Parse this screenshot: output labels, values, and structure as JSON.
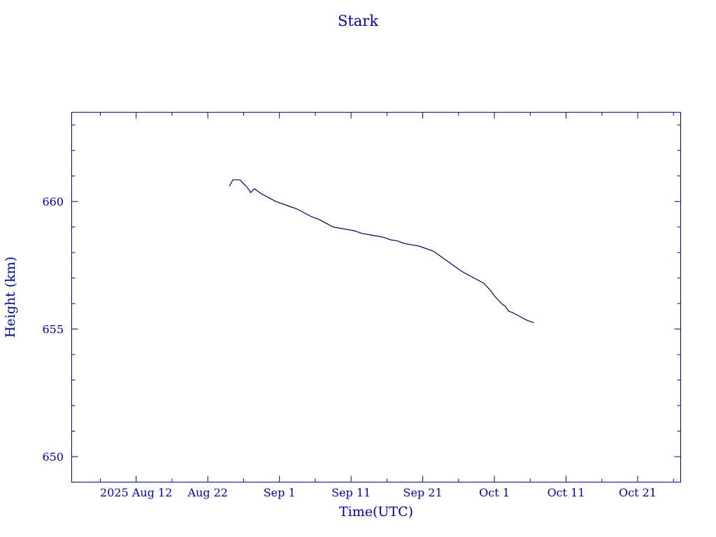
{
  "chart_data": {
    "type": "line",
    "title": "Stark",
    "xlabel": "Time(UTC)",
    "ylabel": "Height (km)",
    "x_axis": "date",
    "xlim": [
      "2025-08-03",
      "2025-10-27"
    ],
    "ylim": [
      649.0,
      663.5
    ],
    "x_ticks": [
      {
        "date": "2025-08-12",
        "label": "2025 Aug 12"
      },
      {
        "date": "2025-08-22",
        "label": "Aug 22"
      },
      {
        "date": "2025-09-01",
        "label": "Sep  1"
      },
      {
        "date": "2025-09-11",
        "label": "Sep 11"
      },
      {
        "date": "2025-09-21",
        "label": "Sep 21"
      },
      {
        "date": "2025-10-01",
        "label": "Oct  1"
      },
      {
        "date": "2025-10-11",
        "label": "Oct 11"
      },
      {
        "date": "2025-10-21",
        "label": "Oct 21"
      }
    ],
    "y_ticks": [
      650,
      655,
      660
    ],
    "grid": false,
    "colors": {
      "axis": "#000080",
      "text": "#0000a0",
      "series": "#000066"
    },
    "series": [
      {
        "x": [
          "2025-08-25T00:00",
          "2025-08-25T12:00",
          "2025-08-26T12:00",
          "2025-08-27T12:00",
          "2025-08-28T00:00",
          "2025-08-28T12:00",
          "2025-08-29T00:00",
          "2025-08-29T12:00",
          "2025-08-30T12:00",
          "2025-08-31T12:00",
          "2025-09-01T12:00",
          "2025-09-02T12:00",
          "2025-09-03T12:00",
          "2025-09-04T12:00",
          "2025-09-05T12:00",
          "2025-09-06T12:00",
          "2025-09-07T12:00",
          "2025-09-08T12:00",
          "2025-09-09T12:00",
          "2025-09-10T12:00",
          "2025-09-11T12:00",
          "2025-09-12T12:00",
          "2025-09-13T12:00",
          "2025-09-14T12:00",
          "2025-09-15T12:00",
          "2025-09-16T12:00",
          "2025-09-17T12:00",
          "2025-09-18T12:00",
          "2025-09-19T12:00",
          "2025-09-20T12:00",
          "2025-09-21T12:00",
          "2025-09-22T12:00",
          "2025-09-23T12:00",
          "2025-09-24T12:00",
          "2025-09-25T12:00",
          "2025-09-26T12:00",
          "2025-09-27T12:00",
          "2025-09-28T12:00",
          "2025-09-29T12:00",
          "2025-09-30T12:00",
          "2025-10-01T00:00",
          "2025-10-01T12:00",
          "2025-10-02T00:00",
          "2025-10-02T06:00",
          "2025-10-02T12:00",
          "2025-10-03T00:00",
          "2025-10-03T12:00",
          "2025-10-04T12:00",
          "2025-10-05T12:00",
          "2025-10-06T12:00"
        ],
        "y": [
          660.6,
          660.85,
          660.85,
          660.55,
          660.35,
          660.5,
          660.4,
          660.3,
          660.15,
          660.0,
          659.9,
          659.8,
          659.7,
          659.55,
          659.4,
          659.3,
          659.15,
          659.0,
          658.95,
          658.9,
          658.85,
          658.75,
          658.7,
          658.65,
          658.6,
          658.5,
          658.45,
          658.35,
          658.3,
          658.25,
          658.15,
          658.05,
          657.85,
          657.65,
          657.45,
          657.25,
          657.1,
          656.95,
          656.8,
          656.5,
          656.3,
          656.15,
          656.0,
          655.95,
          655.9,
          655.7,
          655.65,
          655.5,
          655.35,
          655.25
        ]
      }
    ]
  }
}
